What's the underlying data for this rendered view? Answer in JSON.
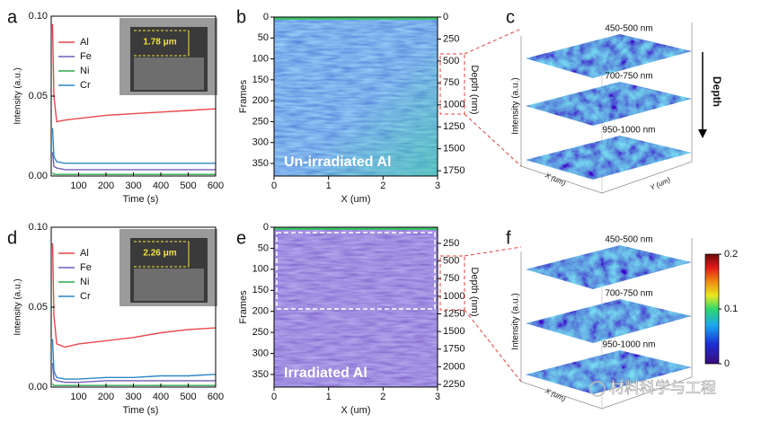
{
  "chart_data": [
    {
      "type": "line",
      "panel": "a",
      "xlabel": "Time (s)",
      "ylabel": "Intensity (a.u.)",
      "inset_label": "1.78 μm",
      "x": [
        5,
        10,
        20,
        50,
        100,
        200,
        300,
        400,
        500,
        600
      ],
      "series": [
        {
          "name": "Al",
          "color": "#e8474c",
          "values": [
            0.095,
            0.05,
            0.034,
            0.035,
            0.036,
            0.038,
            0.039,
            0.04,
            0.041,
            0.042
          ]
        },
        {
          "name": "Fe",
          "color": "#6f5fb5",
          "values": [
            0.015,
            0.006,
            0.005,
            0.004,
            0.004,
            0.004,
            0.004,
            0.004,
            0.004,
            0.004
          ]
        },
        {
          "name": "Ni",
          "color": "#2fa84f",
          "values": [
            0.002,
            0.001,
            0.001,
            0.001,
            0.001,
            0.001,
            0.001,
            0.001,
            0.001,
            0.001
          ]
        },
        {
          "name": "Cr",
          "color": "#2d86c8",
          "values": [
            0.03,
            0.012,
            0.009,
            0.008,
            0.008,
            0.008,
            0.008,
            0.008,
            0.008,
            0.008
          ]
        }
      ],
      "xlim": [
        0,
        600
      ],
      "xticks": [
        100,
        200,
        300,
        400,
        500,
        600
      ],
      "ylim": [
        0,
        0.1
      ],
      "yticks": [
        {
          "value": 0,
          "label": "0.00"
        },
        {
          "value": 0.05,
          "label": "0.05"
        },
        {
          "value": 0.1,
          "label": "0.10"
        }
      ]
    },
    {
      "type": "heatmap",
      "panel": "b",
      "xlabel": "X (um)",
      "ylabel": "Frames",
      "y2label": "Depth (nm)",
      "annotation": "Un-irradiated Al",
      "xlim": [
        0,
        3
      ],
      "xticks": [
        0,
        1,
        2,
        3
      ],
      "ylim": [
        0,
        380
      ],
      "yticks": [
        0,
        50,
        100,
        150,
        200,
        250,
        300,
        350
      ],
      "y2lim": [
        0,
        1810
      ],
      "y2ticks": [
        0,
        250,
        500,
        750,
        1000,
        1250,
        1500,
        1750
      ]
    },
    {
      "type": "surface3d",
      "panel": "c",
      "layers": [
        "450-500 nm",
        "700-750 nm",
        "950-1000 nm"
      ],
      "zlabel": "Intensity (a.u.)",
      "xlabel": "X (um)",
      "ylabel": "Y (um)",
      "annotation": "Depth"
    },
    {
      "type": "line",
      "panel": "d",
      "xlabel": "Time (s)",
      "ylabel": "Intensity (a.u.)",
      "inset_label": "2.26 μm",
      "x": [
        5,
        10,
        20,
        50,
        100,
        200,
        300,
        400,
        500,
        600
      ],
      "series": [
        {
          "name": "Al",
          "color": "#e8474c",
          "values": [
            0.09,
            0.045,
            0.027,
            0.025,
            0.027,
            0.029,
            0.031,
            0.034,
            0.036,
            0.037
          ]
        },
        {
          "name": "Fe",
          "color": "#6f5fb5",
          "values": [
            0.015,
            0.005,
            0.004,
            0.003,
            0.003,
            0.004,
            0.004,
            0.004,
            0.004,
            0.004
          ]
        },
        {
          "name": "Ni",
          "color": "#2fa84f",
          "values": [
            0.002,
            0.001,
            0.001,
            0.001,
            0.001,
            0.001,
            0.001,
            0.001,
            0.001,
            0.001
          ]
        },
        {
          "name": "Cr",
          "color": "#2d86c8",
          "values": [
            0.03,
            0.01,
            0.006,
            0.005,
            0.005,
            0.006,
            0.006,
            0.007,
            0.007,
            0.008
          ]
        }
      ],
      "xlim": [
        0,
        600
      ],
      "xticks": [
        100,
        200,
        300,
        400,
        500,
        600
      ],
      "ylim": [
        0,
        0.1
      ],
      "yticks": [
        {
          "value": 0,
          "label": "0.00"
        },
        {
          "value": 0.05,
          "label": "0.05"
        },
        {
          "value": 0.1,
          "label": "0.10"
        }
      ]
    },
    {
      "type": "heatmap",
      "panel": "e",
      "xlabel": "X (um)",
      "ylabel": "Frames",
      "y2label": "Depth (nm)",
      "annotation": "Irradiated Al",
      "xlim": [
        0,
        3
      ],
      "xticks": [
        0,
        1,
        2,
        3
      ],
      "ylim": [
        0,
        380
      ],
      "yticks": [
        0,
        50,
        100,
        150,
        200,
        250,
        300,
        350
      ],
      "y2lim": [
        21,
        2288
      ],
      "y2ticks": [
        250,
        500,
        750,
        1000,
        1250,
        1500,
        1750,
        2000,
        2250
      ]
    },
    {
      "type": "surface3d",
      "panel": "f",
      "layers": [
        "450-500 nm",
        "700-750 nm",
        "950-1000 nm"
      ],
      "zlabel": "Intensity (a.u.)",
      "xlabel": "X (um)",
      "colorbar": {
        "lim": [
          0,
          0.2
        ],
        "ticks": [
          0,
          0.1,
          0.2
        ]
      }
    }
  ],
  "watermark": "材料科学与工程"
}
